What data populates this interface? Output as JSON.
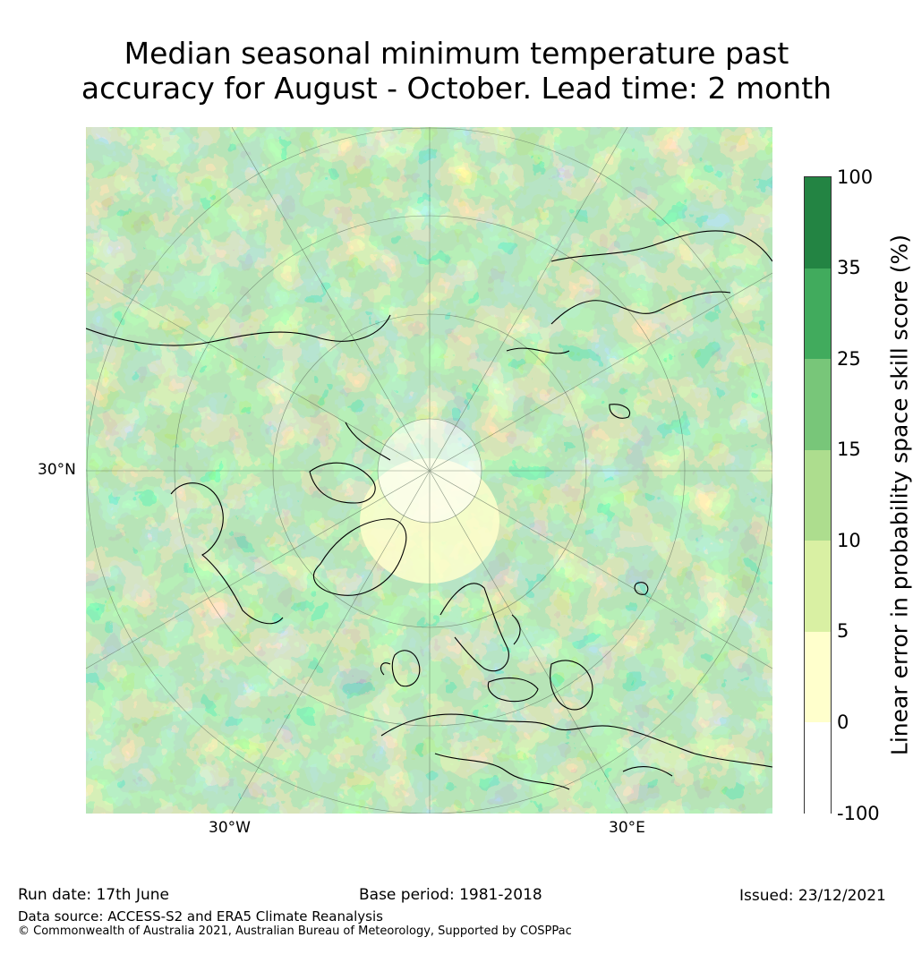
{
  "title": {
    "line1": "Median seasonal minimum temperature past",
    "line2": "accuracy for August - October. Lead time: 2 month"
  },
  "map": {
    "lat_label": "30°N",
    "lon_labels": [
      "30°W",
      "30°E"
    ]
  },
  "colorbar": {
    "label": "Linear error in probability space skill score (%)",
    "ticks": [
      "100",
      "35",
      "25",
      "15",
      "10",
      "5",
      "0",
      "-100"
    ],
    "colors": [
      "#238443",
      "#41ab5d",
      "#78c679",
      "#addd8e",
      "#d9f0a3",
      "#ffffcc",
      "#ffffff"
    ]
  },
  "footer": {
    "run_date": "Run date: 17th June",
    "base_period": "Base period: 1981-2018",
    "issued": "Issued: 23/12/2021",
    "data_source": "Data source: ACCESS-S2 and ERA5 Climate Reanalysis",
    "copyright": "© Commonwealth of Australia 2021, Australian Bureau of Meteorology, Supported by COSPPac"
  }
}
